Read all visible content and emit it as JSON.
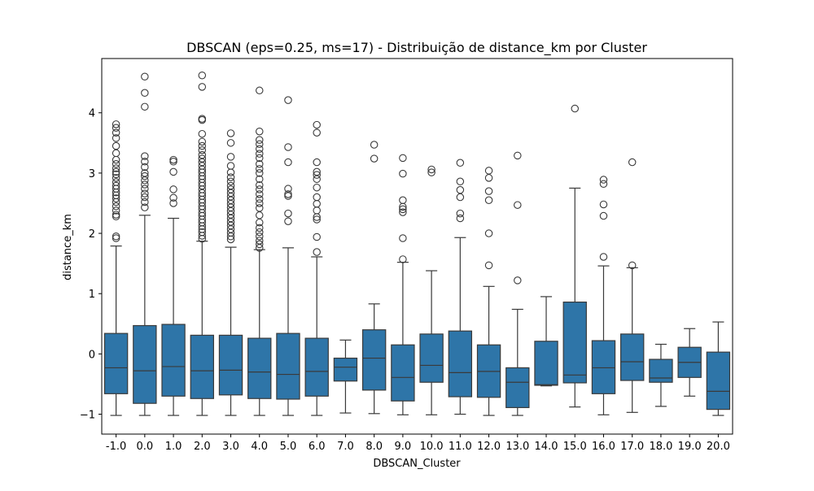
{
  "chart_data": {
    "type": "box",
    "title": "DBSCAN (eps=0.25, ms=17)  - Distribuição de distance_km por Cluster",
    "xlabel": "DBSCAN_Cluster",
    "ylabel": "distance_km",
    "ylim": [
      -1.33,
      4.9
    ],
    "y_ticks": [
      -1,
      0,
      1,
      2,
      3,
      4
    ],
    "grid": false,
    "colors": {
      "box": "#2e75a8",
      "line": "#3a3a3a",
      "frame": "#000000"
    },
    "categories": [
      "-1.0",
      "0.0",
      "1.0",
      "2.0",
      "3.0",
      "4.0",
      "5.0",
      "6.0",
      "7.0",
      "8.0",
      "9.0",
      "10.0",
      "11.0",
      "12.0",
      "13.0",
      "14.0",
      "15.0",
      "16.0",
      "17.0",
      "18.0",
      "19.0",
      "20.0"
    ],
    "boxes": [
      {
        "min": -1.02,
        "q1": -0.66,
        "median": -0.23,
        "q3": 0.34,
        "max": 1.79,
        "outliers": [
          1.92,
          1.95,
          2.28,
          2.31,
          2.38,
          2.45,
          2.52,
          2.58,
          2.63,
          2.68,
          2.74,
          2.79,
          2.85,
          2.92,
          2.98,
          3.02,
          3.08,
          3.15,
          3.22,
          3.33,
          3.45,
          3.58,
          3.67,
          3.75,
          3.81
        ]
      },
      {
        "min": -1.02,
        "q1": -0.82,
        "median": -0.28,
        "q3": 0.47,
        "max": 2.3,
        "outliers": [
          2.43,
          2.52,
          2.6,
          2.66,
          2.74,
          2.81,
          2.88,
          2.95,
          3.0,
          3.1,
          3.19,
          3.28,
          4.1,
          4.33,
          4.6
        ]
      },
      {
        "min": -1.02,
        "q1": -0.7,
        "median": -0.21,
        "q3": 0.49,
        "max": 2.25,
        "outliers": [
          2.5,
          2.59,
          2.73,
          3.02,
          3.19,
          3.22
        ]
      },
      {
        "min": -1.02,
        "q1": -0.74,
        "median": -0.28,
        "q3": 0.31,
        "max": 1.87,
        "outliers": [
          1.91,
          1.96,
          2.02,
          2.07,
          2.12,
          2.18,
          2.23,
          2.29,
          2.34,
          2.4,
          2.45,
          2.51,
          2.56,
          2.62,
          2.67,
          2.73,
          2.79,
          2.84,
          2.9,
          2.95,
          3.01,
          3.06,
          3.12,
          3.18,
          3.24,
          3.3,
          3.38,
          3.45,
          3.52,
          3.65,
          3.88,
          3.9,
          4.43,
          4.62
        ]
      },
      {
        "min": -1.02,
        "q1": -0.68,
        "median": -0.27,
        "q3": 0.31,
        "max": 1.77,
        "outliers": [
          1.9,
          1.95,
          2.01,
          2.07,
          2.13,
          2.19,
          2.25,
          2.31,
          2.37,
          2.43,
          2.49,
          2.55,
          2.61,
          2.67,
          2.73,
          2.79,
          2.86,
          2.93,
          3.01,
          3.12,
          3.27,
          3.5,
          3.66
        ]
      },
      {
        "min": -1.02,
        "q1": -0.74,
        "median": -0.3,
        "q3": 0.26,
        "max": 1.73,
        "outliers": [
          1.76,
          1.82,
          1.88,
          1.95,
          2.02,
          2.09,
          2.18,
          2.3,
          2.42,
          2.5,
          2.57,
          2.65,
          2.73,
          2.8,
          2.9,
          3.0,
          3.07,
          3.15,
          3.25,
          3.32,
          3.4,
          3.48,
          3.55,
          3.69,
          4.37
        ]
      },
      {
        "min": -1.02,
        "q1": -0.75,
        "median": -0.34,
        "q3": 0.34,
        "max": 1.76,
        "outliers": [
          2.2,
          2.33,
          2.62,
          2.65,
          2.74,
          3.18,
          3.43,
          4.21
        ]
      },
      {
        "min": -1.02,
        "q1": -0.7,
        "median": -0.29,
        "q3": 0.26,
        "max": 1.61,
        "outliers": [
          1.69,
          1.94,
          2.23,
          2.27,
          2.38,
          2.49,
          2.6,
          2.76,
          2.9,
          2.97,
          3.02,
          3.18,
          3.67,
          3.8
        ]
      },
      {
        "min": -0.98,
        "q1": -0.45,
        "median": -0.22,
        "q3": -0.07,
        "max": 0.23,
        "outliers": []
      },
      {
        "min": -0.99,
        "q1": -0.6,
        "median": -0.07,
        "q3": 0.4,
        "max": 0.83,
        "outliers": [
          3.24,
          3.47
        ]
      },
      {
        "min": -1.01,
        "q1": -0.78,
        "median": -0.39,
        "q3": 0.15,
        "max": 1.52,
        "outliers": [
          1.57,
          1.92,
          2.35,
          2.4,
          2.44,
          2.55,
          2.99,
          3.25
        ]
      },
      {
        "min": -1.01,
        "q1": -0.47,
        "median": -0.19,
        "q3": 0.33,
        "max": 1.38,
        "outliers": [
          3.01,
          3.06
        ]
      },
      {
        "min": -1.0,
        "q1": -0.71,
        "median": -0.31,
        "q3": 0.38,
        "max": 1.93,
        "outliers": [
          2.25,
          2.33,
          2.6,
          2.72,
          2.86,
          3.17
        ]
      },
      {
        "min": -1.02,
        "q1": -0.72,
        "median": -0.29,
        "q3": 0.15,
        "max": 1.12,
        "outliers": [
          1.47,
          2.0,
          2.55,
          2.7,
          2.92,
          3.04
        ]
      },
      {
        "min": -1.02,
        "q1": -0.89,
        "median": -0.47,
        "q3": -0.23,
        "max": 0.74,
        "outliers": [
          1.22,
          2.47,
          3.29
        ]
      },
      {
        "min": -0.53,
        "q1": -0.52,
        "median": -0.51,
        "q3": 0.21,
        "max": 0.95,
        "outliers": []
      },
      {
        "min": -0.88,
        "q1": -0.48,
        "median": -0.35,
        "q3": 0.86,
        "max": 2.75,
        "outliers": [
          4.07
        ]
      },
      {
        "min": -1.01,
        "q1": -0.66,
        "median": -0.23,
        "q3": 0.22,
        "max": 1.46,
        "outliers": [
          1.61,
          2.29,
          2.48,
          2.82,
          2.89
        ]
      },
      {
        "min": -0.97,
        "q1": -0.44,
        "median": -0.13,
        "q3": 0.33,
        "max": 1.43,
        "outliers": [
          1.47,
          3.18
        ]
      },
      {
        "min": -0.87,
        "q1": -0.47,
        "median": -0.4,
        "q3": -0.09,
        "max": 0.16,
        "outliers": []
      },
      {
        "min": -0.7,
        "q1": -0.39,
        "median": -0.14,
        "q3": 0.11,
        "max": 0.42,
        "outliers": []
      },
      {
        "min": -1.02,
        "q1": -0.92,
        "median": -0.62,
        "q3": 0.03,
        "max": 0.53,
        "outliers": []
      }
    ]
  }
}
